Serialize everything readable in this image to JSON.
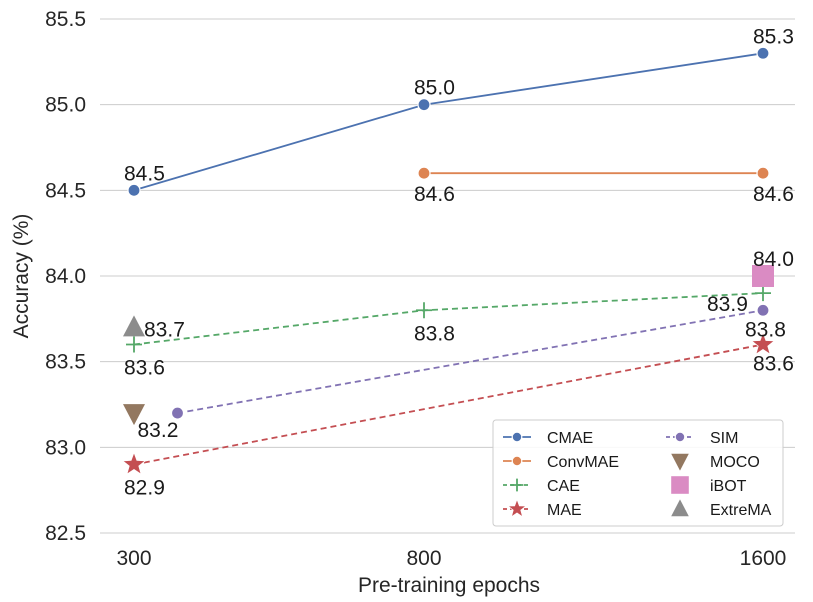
{
  "chart_data": {
    "type": "line",
    "title": "",
    "xlabel": "Pre-training epochs",
    "ylabel": "Accuracy (%)",
    "ylim": [
      82.5,
      85.5
    ],
    "yticks": [
      "82.5",
      "83.0",
      "83.5",
      "84.0",
      "84.5",
      "85.0",
      "85.5"
    ],
    "x_categories": [
      "300",
      "800",
      "1600"
    ],
    "grid": "horizontal",
    "legend_position": "bottom-right",
    "series": [
      {
        "name": "CMAE",
        "color": "#4c72b0",
        "line": "solid",
        "marker": "circle",
        "points": [
          {
            "x": 0,
            "y": 84.5,
            "label": "84.5"
          },
          {
            "x": 1,
            "y": 85.0,
            "label": "85.0"
          },
          {
            "x": 2,
            "y": 85.3,
            "label": "85.3"
          }
        ]
      },
      {
        "name": "ConvMAE",
        "color": "#dd8452",
        "line": "solid",
        "marker": "circle",
        "points": [
          {
            "x": 1,
            "y": 84.6,
            "label": "84.6"
          },
          {
            "x": 2,
            "y": 84.6,
            "label": "84.6"
          }
        ]
      },
      {
        "name": "CAE",
        "color": "#55a868",
        "line": "dashed",
        "marker": "plus",
        "points": [
          {
            "x": 0,
            "y": 83.6,
            "label": "83.6"
          },
          {
            "x": 1,
            "y": 83.8,
            "label": "83.8"
          },
          {
            "x": 2,
            "y": 83.9,
            "label": "83.9"
          }
        ]
      },
      {
        "name": "MAE",
        "color": "#c44e52",
        "line": "dashed",
        "marker": "star",
        "points": [
          {
            "x": 0,
            "y": 82.9,
            "label": "82.9"
          },
          {
            "x": 2,
            "y": 83.6,
            "label": "83.6"
          }
        ]
      },
      {
        "name": "SIM",
        "color": "#8172b3",
        "line": "dashed",
        "marker": "circle",
        "points": [
          {
            "x": 0.15,
            "y": 83.2,
            "label": "83.2"
          },
          {
            "x": 2,
            "y": 83.8,
            "label": "83.8"
          }
        ]
      },
      {
        "name": "MOCO",
        "color": "#937860",
        "line": "none",
        "marker": "triangle-down",
        "points": [
          {
            "x": 0,
            "y": 83.2,
            "label": ""
          }
        ]
      },
      {
        "name": "iBOT",
        "color": "#da8bc3",
        "line": "none",
        "marker": "square",
        "points": [
          {
            "x": 2,
            "y": 84.0,
            "label": "84.0"
          }
        ]
      },
      {
        "name": "ExtreMA",
        "color": "#8c8c8c",
        "line": "none",
        "marker": "triangle-up",
        "points": [
          {
            "x": 0,
            "y": 83.7,
            "label": "83.7"
          }
        ]
      }
    ]
  }
}
